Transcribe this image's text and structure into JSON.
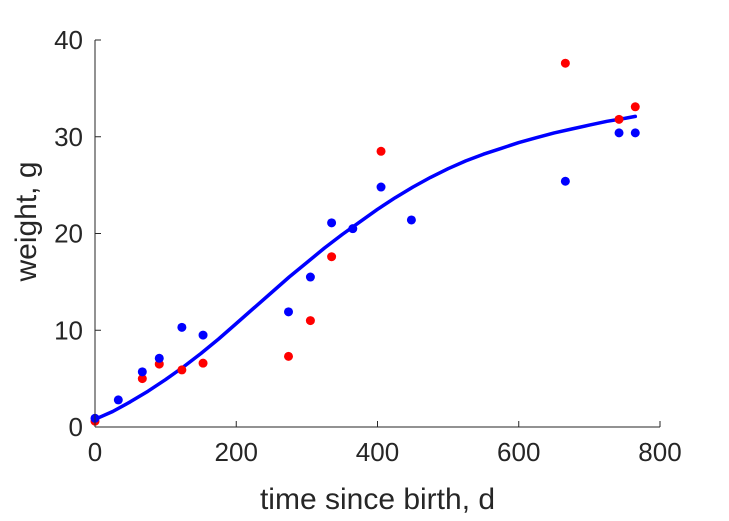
{
  "chart_data": {
    "type": "scatter",
    "xlabel": "time since birth, d",
    "ylabel": "weight, g",
    "xlim": [
      0,
      800
    ],
    "ylim": [
      0,
      40
    ],
    "xticks": [
      0,
      200,
      400,
      600,
      800
    ],
    "yticks": [
      0,
      10,
      20,
      30,
      40
    ],
    "grid": false,
    "series": [
      {
        "type": "scatter",
        "color": "#ff0000",
        "points": [
          {
            "x": 0,
            "y": 0.6
          },
          {
            "x": 67,
            "y": 5.0
          },
          {
            "x": 91,
            "y": 6.5
          },
          {
            "x": 123,
            "y": 5.9
          },
          {
            "x": 153,
            "y": 6.6
          },
          {
            "x": 274,
            "y": 7.3
          },
          {
            "x": 305,
            "y": 11.0
          },
          {
            "x": 335,
            "y": 17.6
          },
          {
            "x": 405,
            "y": 28.5
          },
          {
            "x": 666,
            "y": 37.6
          },
          {
            "x": 742,
            "y": 31.8
          },
          {
            "x": 765,
            "y": 33.1
          }
        ]
      },
      {
        "type": "scatter",
        "color": "#0000ff",
        "points": [
          {
            "x": 0,
            "y": 0.9
          },
          {
            "x": 33,
            "y": 2.8
          },
          {
            "x": 67,
            "y": 5.7
          },
          {
            "x": 91,
            "y": 7.1
          },
          {
            "x": 123,
            "y": 10.3
          },
          {
            "x": 153,
            "y": 9.5
          },
          {
            "x": 274,
            "y": 11.9
          },
          {
            "x": 305,
            "y": 15.5
          },
          {
            "x": 335,
            "y": 21.1
          },
          {
            "x": 365,
            "y": 20.5
          },
          {
            "x": 405,
            "y": 24.8
          },
          {
            "x": 448,
            "y": 21.4
          },
          {
            "x": 666,
            "y": 25.4
          },
          {
            "x": 742,
            "y": 30.4
          },
          {
            "x": 765,
            "y": 30.4
          }
        ]
      },
      {
        "type": "line",
        "color": "#0000ff",
        "points": [
          {
            "x": 0,
            "y": 0.8
          },
          {
            "x": 25,
            "y": 1.6
          },
          {
            "x": 50,
            "y": 2.6
          },
          {
            "x": 75,
            "y": 3.7
          },
          {
            "x": 100,
            "y": 4.9
          },
          {
            "x": 125,
            "y": 6.2
          },
          {
            "x": 150,
            "y": 7.6
          },
          {
            "x": 175,
            "y": 9.1
          },
          {
            "x": 200,
            "y": 10.7
          },
          {
            "x": 225,
            "y": 12.3
          },
          {
            "x": 250,
            "y": 13.9
          },
          {
            "x": 275,
            "y": 15.5
          },
          {
            "x": 300,
            "y": 17.0
          },
          {
            "x": 325,
            "y": 18.5
          },
          {
            "x": 350,
            "y": 19.9
          },
          {
            "x": 375,
            "y": 21.2
          },
          {
            "x": 400,
            "y": 22.5
          },
          {
            "x": 425,
            "y": 23.7
          },
          {
            "x": 450,
            "y": 24.8
          },
          {
            "x": 475,
            "y": 25.8
          },
          {
            "x": 500,
            "y": 26.7
          },
          {
            "x": 525,
            "y": 27.5
          },
          {
            "x": 550,
            "y": 28.2
          },
          {
            "x": 575,
            "y": 28.8
          },
          {
            "x": 600,
            "y": 29.4
          },
          {
            "x": 625,
            "y": 29.9
          },
          {
            "x": 650,
            "y": 30.4
          },
          {
            "x": 675,
            "y": 30.8
          },
          {
            "x": 700,
            "y": 31.2
          },
          {
            "x": 725,
            "y": 31.6
          },
          {
            "x": 750,
            "y": 31.9
          },
          {
            "x": 765,
            "y": 32.1
          }
        ]
      }
    ]
  }
}
